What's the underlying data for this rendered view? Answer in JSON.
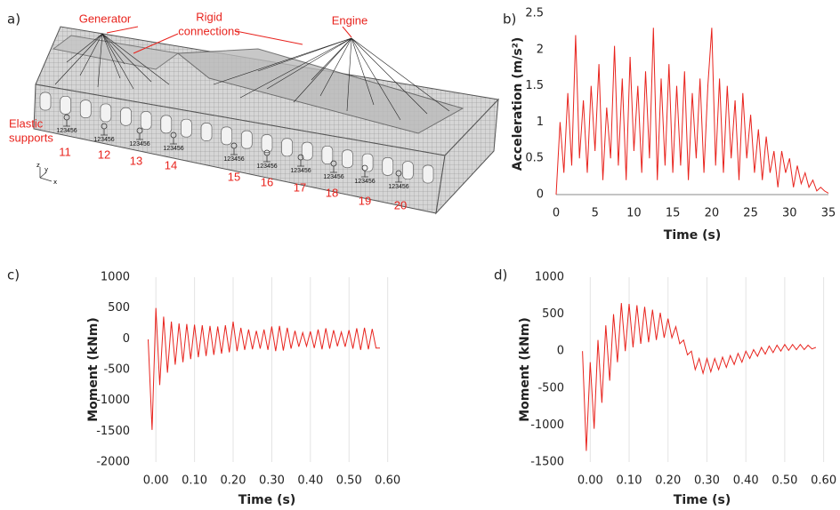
{
  "panel_a": {
    "panel_label": "a)",
    "generator": "Generator",
    "rigid": [
      "Rigid",
      "connections"
    ],
    "engine": "Engine",
    "elastic": [
      "Elastic",
      "supports"
    ],
    "axes": [
      "z",
      "y",
      "x"
    ],
    "supports": [
      {
        "number": "11",
        "dof": "123456"
      },
      {
        "number": "12",
        "dof": "123456"
      },
      {
        "number": "13",
        "dof": "123456"
      },
      {
        "number": "14",
        "dof": "123456"
      },
      {
        "number": "15",
        "dof": "123456"
      },
      {
        "number": "16",
        "dof": "123456"
      },
      {
        "number": "17",
        "dof": "123456"
      },
      {
        "number": "18",
        "dof": "123456"
      },
      {
        "number": "19",
        "dof": "123456"
      },
      {
        "number": "20",
        "dof": "123456"
      }
    ]
  },
  "chart_data": [
    {
      "type": "line",
      "panel_label": "b)",
      "x_label": "Time (s)",
      "y_label": "Acceleration (m/s²)",
      "color": "#e8231d",
      "grid": false,
      "xlim": [
        0,
        35
      ],
      "xticks": [
        0,
        5,
        10,
        15,
        20,
        25,
        30,
        35
      ],
      "ylim": [
        0,
        2.5
      ],
      "yticks": [
        0,
        0.5,
        1,
        1.5,
        2,
        2.5
      ],
      "x": [
        0,
        0.5,
        1,
        1.5,
        2,
        2.5,
        3,
        3.5,
        4,
        4.5,
        5,
        5.5,
        6,
        6.5,
        7,
        7.5,
        8,
        8.5,
        9,
        9.5,
        10,
        10.5,
        11,
        11.5,
        12,
        12.5,
        13,
        13.5,
        14,
        14.5,
        15,
        15.5,
        16,
        16.5,
        17,
        17.5,
        18,
        18.5,
        19,
        19.5,
        20,
        20.5,
        21,
        21.5,
        22,
        22.5,
        23,
        23.5,
        24,
        24.5,
        25,
        25.5,
        26,
        26.5,
        27,
        27.5,
        28,
        28.5,
        29,
        29.5,
        30,
        30.5,
        31,
        31.5,
        32,
        32.5,
        33,
        33.5,
        34,
        34.5,
        35
      ],
      "values": [
        0,
        1.0,
        0.3,
        1.4,
        0.4,
        2.2,
        0.5,
        1.3,
        0.3,
        1.5,
        0.6,
        1.8,
        0.2,
        1.2,
        0.5,
        2.05,
        0.4,
        1.6,
        0.2,
        1.9,
        0.6,
        1.5,
        0.3,
        1.7,
        0.5,
        2.3,
        0.2,
        1.6,
        0.4,
        1.8,
        0.3,
        1.5,
        0.4,
        1.7,
        0.2,
        1.4,
        0.5,
        1.6,
        0.3,
        1.5,
        2.3,
        0.4,
        1.6,
        0.3,
        1.5,
        0.5,
        1.3,
        0.2,
        1.4,
        0.5,
        1.1,
        0.3,
        0.9,
        0.2,
        0.8,
        0.3,
        0.6,
        0.1,
        0.6,
        0.3,
        0.5,
        0.1,
        0.4,
        0.15,
        0.3,
        0.1,
        0.2,
        0.05,
        0.1,
        0.05,
        0.02
      ]
    },
    {
      "type": "line",
      "panel_label": "c)",
      "x_label": "Time (s)",
      "y_label": "Moment (kNm)",
      "color": "#e8231d",
      "grid": true,
      "xlim": [
        -0.035,
        0.61
      ],
      "xticks": [
        {
          "value": 0,
          "label": "0.00"
        },
        {
          "value": 0.1,
          "label": "0.10"
        },
        {
          "value": 0.2,
          "label": "0.20"
        },
        {
          "value": 0.3,
          "label": "0.30"
        },
        {
          "value": 0.4,
          "label": "0.40"
        },
        {
          "value": 0.5,
          "label": "0.50"
        },
        {
          "value": 0.6,
          "label": "0.60"
        }
      ],
      "ylim": [
        -2000,
        1000
      ],
      "yticks": [
        -2000,
        -1500,
        -1000,
        -500,
        0,
        500,
        1000
      ],
      "x": [
        -0.02,
        -0.01,
        0,
        0.01,
        0.02,
        0.03,
        0.04,
        0.05,
        0.06,
        0.07,
        0.08,
        0.09,
        0.1,
        0.11,
        0.12,
        0.13,
        0.14,
        0.15,
        0.16,
        0.17,
        0.18,
        0.19,
        0.2,
        0.21,
        0.22,
        0.23,
        0.24,
        0.25,
        0.26,
        0.27,
        0.28,
        0.29,
        0.3,
        0.31,
        0.32,
        0.33,
        0.34,
        0.35,
        0.36,
        0.37,
        0.38,
        0.39,
        0.4,
        0.41,
        0.42,
        0.43,
        0.44,
        0.45,
        0.46,
        0.47,
        0.48,
        0.49,
        0.5,
        0.51,
        0.52,
        0.53,
        0.54,
        0.55,
        0.56,
        0.57,
        0.58
      ],
      "values": [
        -10,
        -1480,
        500,
        -750,
        360,
        -550,
        280,
        -420,
        250,
        -380,
        240,
        -330,
        230,
        -300,
        220,
        -280,
        210,
        -260,
        200,
        -240,
        220,
        -220,
        280,
        -200,
        180,
        -180,
        150,
        -170,
        130,
        -160,
        150,
        -180,
        200,
        -200,
        210,
        -190,
        180,
        -160,
        130,
        -130,
        100,
        -120,
        120,
        -150,
        150,
        -170,
        170,
        -160,
        140,
        -120,
        110,
        -130,
        140,
        -160,
        170,
        -180,
        180,
        -170,
        160,
        -150,
        -150
      ]
    },
    {
      "type": "line",
      "panel_label": "d)",
      "x_label": "Time (s)",
      "y_label": "Moment (kNm)",
      "color": "#e8231d",
      "grid": true,
      "xlim": [
        -0.035,
        0.61
      ],
      "xticks": [
        {
          "value": 0,
          "label": "0.00"
        },
        {
          "value": 0.1,
          "label": "0.10"
        },
        {
          "value": 0.2,
          "label": "0.20"
        },
        {
          "value": 0.3,
          "label": "0.30"
        },
        {
          "value": 0.4,
          "label": "0.40"
        },
        {
          "value": 0.5,
          "label": "0.50"
        },
        {
          "value": 0.6,
          "label": "0.60"
        }
      ],
      "ylim": [
        -1500,
        1000
      ],
      "yticks": [
        -1500,
        -1000,
        -500,
        0,
        500,
        1000
      ],
      "x": [
        -0.02,
        -0.01,
        0,
        0.01,
        0.02,
        0.03,
        0.04,
        0.05,
        0.06,
        0.07,
        0.08,
        0.09,
        0.1,
        0.11,
        0.12,
        0.13,
        0.14,
        0.15,
        0.16,
        0.17,
        0.18,
        0.19,
        0.2,
        0.21,
        0.22,
        0.23,
        0.24,
        0.25,
        0.26,
        0.27,
        0.28,
        0.29,
        0.3,
        0.31,
        0.32,
        0.33,
        0.34,
        0.35,
        0.36,
        0.37,
        0.38,
        0.39,
        0.4,
        0.41,
        0.42,
        0.43,
        0.44,
        0.45,
        0.46,
        0.47,
        0.48,
        0.49,
        0.5,
        0.51,
        0.52,
        0.53,
        0.54,
        0.55,
        0.56,
        0.57,
        0.58
      ],
      "values": [
        0,
        -1350,
        -150,
        -1050,
        150,
        -700,
        350,
        -400,
        500,
        -150,
        650,
        0,
        640,
        50,
        620,
        100,
        600,
        120,
        560,
        150,
        520,
        180,
        440,
        180,
        330,
        100,
        150,
        -50,
        0,
        -250,
        -100,
        -300,
        -100,
        -280,
        -100,
        -250,
        -80,
        -220,
        -60,
        -180,
        -30,
        -150,
        0,
        -100,
        20,
        -70,
        50,
        -40,
        70,
        -20,
        80,
        0,
        90,
        10,
        90,
        20,
        90,
        20,
        80,
        30,
        50
      ]
    }
  ]
}
